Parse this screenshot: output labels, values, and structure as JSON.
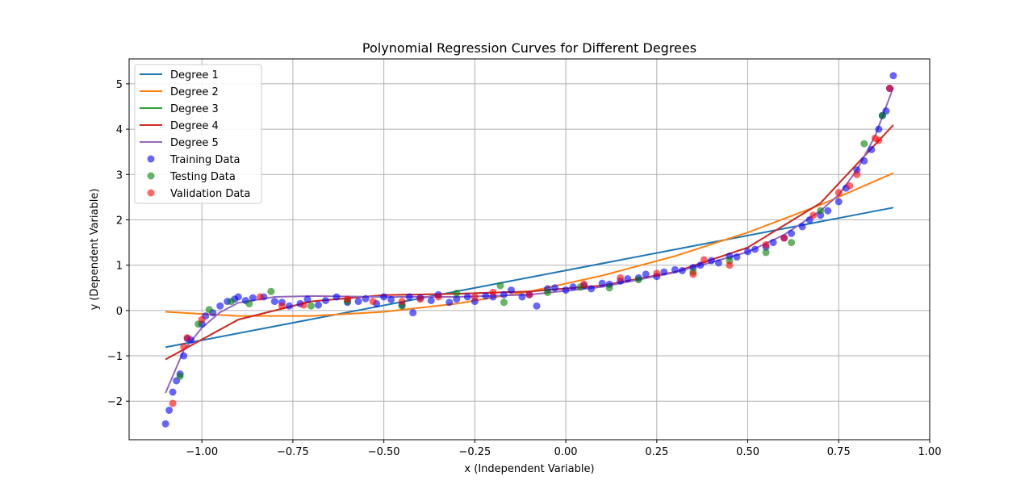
{
  "chart_data": {
    "type": "line",
    "title": "Polynomial Regression Curves for Different Degrees",
    "xlabel": "x (Independent Variable)",
    "ylabel": "y (Dependent Variable)",
    "xlim": [
      -1.2,
      1.0
    ],
    "ylim": [
      -2.85,
      5.55
    ],
    "xticks": [
      -1.0,
      -0.75,
      -0.5,
      -0.25,
      0.0,
      0.25,
      0.5,
      0.75,
      1.0
    ],
    "xtick_labels": [
      "−1.00",
      "−0.75",
      "−0.50",
      "−0.25",
      "0.00",
      "0.25",
      "0.50",
      "0.75",
      "1.00"
    ],
    "yticks": [
      -2,
      -1,
      0,
      1,
      2,
      3,
      4,
      5
    ],
    "ytick_labels": [
      "−2",
      "−1",
      "0",
      "1",
      "2",
      "3",
      "4",
      "5"
    ],
    "grid": true,
    "legend_position": "top-left",
    "series": [
      {
        "name": "Degree 1",
        "kind": "line",
        "color": "#1f77b4",
        "x": [
          -1.1,
          0.9
        ],
        "y": [
          -0.81,
          2.27
        ]
      },
      {
        "name": "Degree 2",
        "kind": "line",
        "color": "#ff7f0e",
        "x": [
          -1.1,
          -0.9,
          -0.7,
          -0.5,
          -0.3,
          -0.1,
          0.1,
          0.3,
          0.5,
          0.7,
          0.9
        ],
        "y": [
          -0.03,
          -0.12,
          -0.12,
          -0.03,
          0.15,
          0.42,
          0.77,
          1.2,
          1.72,
          2.33,
          3.03
        ]
      },
      {
        "name": "Degree 3",
        "kind": "line",
        "color": "#2ca02c",
        "x": [
          -1.1,
          -0.9,
          -0.7,
          -0.5,
          -0.3,
          -0.1,
          0.1,
          0.3,
          0.5,
          0.7,
          0.9
        ],
        "y": [
          -1.08,
          -0.2,
          0.2,
          0.34,
          0.37,
          0.42,
          0.55,
          0.85,
          1.39,
          2.37,
          4.09
        ]
      },
      {
        "name": "Degree 4",
        "kind": "line",
        "color": "#d62728",
        "x": [
          -1.1,
          -0.9,
          -0.7,
          -0.5,
          -0.3,
          -0.1,
          0.1,
          0.3,
          0.5,
          0.7,
          0.9
        ],
        "y": [
          -1.08,
          -0.2,
          0.2,
          0.34,
          0.37,
          0.42,
          0.55,
          0.85,
          1.39,
          2.37,
          4.09
        ]
      },
      {
        "name": "Degree 5",
        "kind": "line",
        "color": "#9467bd",
        "x": [
          -1.1,
          -1.05,
          -1.0,
          -0.95,
          -0.9,
          -0.8,
          -0.7,
          -0.5,
          -0.3,
          -0.1,
          0.1,
          0.3,
          0.5,
          0.6,
          0.7,
          0.75,
          0.8,
          0.85,
          0.9
        ],
        "y": [
          -1.82,
          -0.88,
          -0.38,
          -0.04,
          0.17,
          0.3,
          0.32,
          0.3,
          0.3,
          0.35,
          0.52,
          0.84,
          1.29,
          1.67,
          2.2,
          2.55,
          3.1,
          3.85,
          4.92
        ]
      },
      {
        "name": "Training Data",
        "kind": "scatter",
        "color": "#0000ff",
        "x": [
          -1.1,
          -1.09,
          -1.08,
          -1.07,
          -1.06,
          -1.05,
          -1.04,
          -1.03,
          -1.0,
          -0.99,
          -0.97,
          -0.95,
          -0.93,
          -0.91,
          -0.9,
          -0.88,
          -0.86,
          -0.83,
          -0.8,
          -0.78,
          -0.76,
          -0.73,
          -0.71,
          -0.68,
          -0.66,
          -0.63,
          -0.6,
          -0.57,
          -0.55,
          -0.52,
          -0.5,
          -0.48,
          -0.45,
          -0.43,
          -0.42,
          -0.4,
          -0.37,
          -0.35,
          -0.32,
          -0.3,
          -0.27,
          -0.25,
          -0.22,
          -0.2,
          -0.17,
          -0.15,
          -0.12,
          -0.1,
          -0.08,
          -0.05,
          -0.03,
          0.0,
          0.02,
          0.05,
          0.07,
          0.1,
          0.12,
          0.15,
          0.17,
          0.2,
          0.22,
          0.25,
          0.27,
          0.3,
          0.32,
          0.35,
          0.37,
          0.4,
          0.42,
          0.45,
          0.47,
          0.5,
          0.52,
          0.55,
          0.57,
          0.6,
          0.62,
          0.65,
          0.67,
          0.7,
          0.72,
          0.75,
          0.77,
          0.8,
          0.82,
          0.84,
          0.86,
          0.87,
          0.88,
          0.89,
          0.9
        ],
        "y": [
          -2.5,
          -2.2,
          -1.8,
          -1.55,
          -1.4,
          -1.0,
          -0.62,
          -0.65,
          -0.3,
          -0.12,
          -0.05,
          0.1,
          0.2,
          0.25,
          0.3,
          0.22,
          0.28,
          0.3,
          0.2,
          0.18,
          0.1,
          0.15,
          0.25,
          0.12,
          0.22,
          0.3,
          0.18,
          0.2,
          0.26,
          0.15,
          0.3,
          0.24,
          0.12,
          0.3,
          -0.05,
          0.28,
          0.22,
          0.35,
          0.18,
          0.25,
          0.3,
          0.2,
          0.32,
          0.3,
          0.35,
          0.45,
          0.3,
          0.35,
          0.1,
          0.48,
          0.5,
          0.45,
          0.52,
          0.55,
          0.48,
          0.6,
          0.58,
          0.65,
          0.7,
          0.72,
          0.8,
          0.75,
          0.85,
          0.9,
          0.88,
          0.95,
          1.0,
          1.1,
          1.05,
          1.2,
          1.18,
          1.3,
          1.35,
          1.4,
          1.5,
          1.6,
          1.7,
          1.85,
          2.0,
          2.1,
          2.2,
          2.4,
          2.7,
          3.1,
          3.3,
          3.55,
          4.0,
          4.3,
          4.4,
          4.9,
          5.18
        ]
      },
      {
        "name": "Testing Data",
        "kind": "scatter",
        "color": "#008000",
        "x": [
          -1.06,
          -1.01,
          -0.98,
          -0.92,
          -0.87,
          -0.81,
          -0.7,
          -0.6,
          -0.45,
          -0.3,
          -0.18,
          -0.17,
          -0.05,
          0.04,
          0.12,
          0.2,
          0.35,
          0.45,
          0.55,
          0.62,
          0.7,
          0.82,
          0.87
        ],
        "y": [
          -1.45,
          -0.3,
          0.02,
          0.2,
          0.15,
          0.42,
          0.1,
          0.2,
          0.1,
          0.38,
          0.55,
          0.18,
          0.4,
          0.52,
          0.5,
          0.68,
          0.85,
          1.1,
          1.28,
          1.5,
          2.2,
          3.68,
          4.3
        ]
      },
      {
        "name": "Validation Data",
        "kind": "scatter",
        "color": "#ff0000",
        "x": [
          -1.08,
          -1.05,
          -1.04,
          -1.0,
          -0.84,
          -0.78,
          -0.72,
          -0.6,
          -0.53,
          -0.45,
          -0.4,
          -0.35,
          -0.25,
          -0.2,
          -0.1,
          0.05,
          0.15,
          0.25,
          0.35,
          0.38,
          0.45,
          0.55,
          0.6,
          0.68,
          0.75,
          0.78,
          0.8,
          0.85,
          0.86,
          0.89
        ],
        "y": [
          -2.05,
          -0.8,
          -0.6,
          -0.2,
          0.3,
          0.1,
          0.12,
          0.25,
          0.2,
          0.2,
          0.25,
          0.3,
          0.3,
          0.4,
          0.35,
          0.58,
          0.72,
          0.82,
          0.8,
          1.12,
          1.0,
          1.45,
          1.6,
          2.1,
          2.6,
          2.75,
          3.0,
          3.8,
          3.75,
          4.9
        ]
      }
    ]
  }
}
